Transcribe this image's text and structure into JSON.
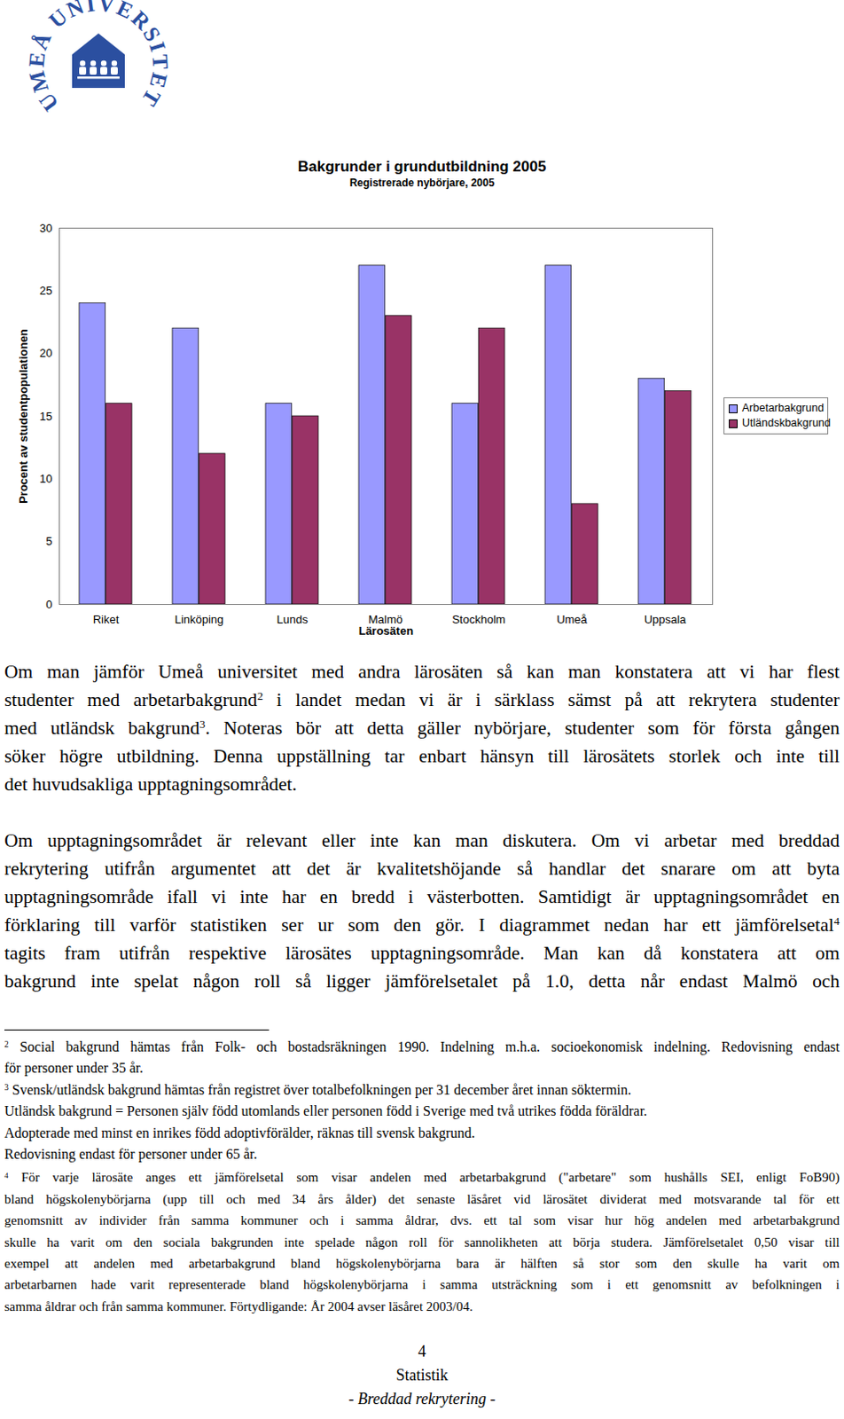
{
  "chart_data": {
    "type": "bar",
    "title": "Bakgrunder i grundutbildning 2005",
    "subtitle": "Registrerade nybörjare, 2005",
    "x_label": "Lärosäten",
    "y_label": "Procent av studentpopulationen",
    "categories": [
      "Riket",
      "Linköping",
      "Lunds",
      "Malmö",
      "Stockholm",
      "Umeå",
      "Uppsala"
    ],
    "series": [
      {
        "name": "Arbetarbakgrund",
        "color": "#9999ff",
        "values": [
          24,
          22,
          16,
          27,
          16,
          27,
          18
        ]
      },
      {
        "name": "Utländskbakgrund",
        "color": "#993366",
        "values": [
          16,
          12,
          15,
          23,
          22,
          8,
          17
        ]
      }
    ],
    "ylim": [
      0,
      30
    ],
    "yticks": [
      0,
      5,
      10,
      15,
      20,
      25,
      30
    ],
    "grid": false,
    "legend": "right"
  },
  "document": {
    "logo": "UMEÅ UNIVERSITET",
    "paragraphs": [
      [
        [
          "Om man jämför Umeå universitet med andra lärosäten så kan man konstatera att vi har flest"
        ],
        [
          "studenter med arbetarbakgrund",
          {
            "sup": "2"
          },
          " i landet medan vi är i särklass sämst på att rekrytera studenter"
        ],
        [
          "med utländsk bakgrund",
          {
            "sup": "3"
          },
          ". Noteras bör att detta gäller nybörjare, studenter som för första gången"
        ],
        [
          "söker högre utbildning. Denna uppställning tar enbart hänsyn till lärosätets storlek och inte till"
        ],
        [
          "det huvudsakliga upptagningsområdet."
        ]
      ],
      [
        [
          "Om upptagningsområdet är relevant eller inte kan man diskutera. Om vi arbetar med breddad"
        ],
        [
          "rekrytering utifrån argumentet att det är kvalitetshöjande så handlar det snarare om att byta"
        ],
        [
          "upptagningsområde ifall vi inte har en bredd i västerbotten. Samtidigt är upptagningsområdet en"
        ],
        [
          "förklaring till varför statistiken ser ur som den gör. I diagrammet nedan har ett jämförelsetal",
          {
            "sup": "4"
          }
        ],
        [
          "tagits fram utifrån respektive lärosätes upptagningsområde. Man kan då konstatera att om"
        ],
        [
          "bakgrund inte spelat någon roll så ligger jämförelsetalet på 1.0, detta når endast Malmö och"
        ]
      ]
    ],
    "footnotes": [
      {
        "mark": "2",
        "lines": [
          "Social bakgrund hämtas från Folk- och bostadsräkningen 1990. Indelning m.h.a. socioekonomisk indelning. Redovisning endast",
          "för personer under 35 år."
        ]
      },
      {
        "mark": "3",
        "lines": [
          "Svensk/utländsk bakgrund hämtas från registret över totalbefolkningen per 31 december året innan söktermin.",
          "Utländsk bakgrund = Personen själv född utomlands eller personen född i Sverige med två utrikes födda föräldrar.",
          "Adopterade med minst en inrikes född adoptivförälder, räknas till svensk bakgrund.",
          "Redovisning endast för personer under 65 år."
        ]
      },
      {
        "mark": "4",
        "lines": [
          "För varje lärosäte anges ett jämförelsetal som visar andelen med arbetarbakgrund (\"arbetare\" som hushålls SEI, enligt FoB90)",
          "bland högskolenybörjarna (upp till och med 34 års ålder) det senaste läsåret vid lärosätet dividerat med motsvarande tal för ett",
          "genomsnitt av individer från samma kommuner och i samma åldrar, dvs. ett tal som visar hur hög andelen med arbetarbakgrund",
          "skulle ha varit om den sociala bakgrunden inte spelade någon roll för sannolikheten att börja studera. Jämförelsetalet 0,50 visar till",
          "exempel att andelen med arbetarbakgrund bland högskolenybörjarna bara är hälften så stor som den skulle ha varit om",
          "arbetarbarnen hade varit representerade bland högskolenybörjarna i samma utsträckning som i ett genomsnitt av befolkningen i",
          "samma åldrar och från samma kommuner. Förtydligande: År 2004 avser läsåret 2003/04."
        ]
      }
    ],
    "footer": {
      "page": "4",
      "title": "Statistik",
      "subtitle": "- Breddad rekrytering -"
    }
  }
}
